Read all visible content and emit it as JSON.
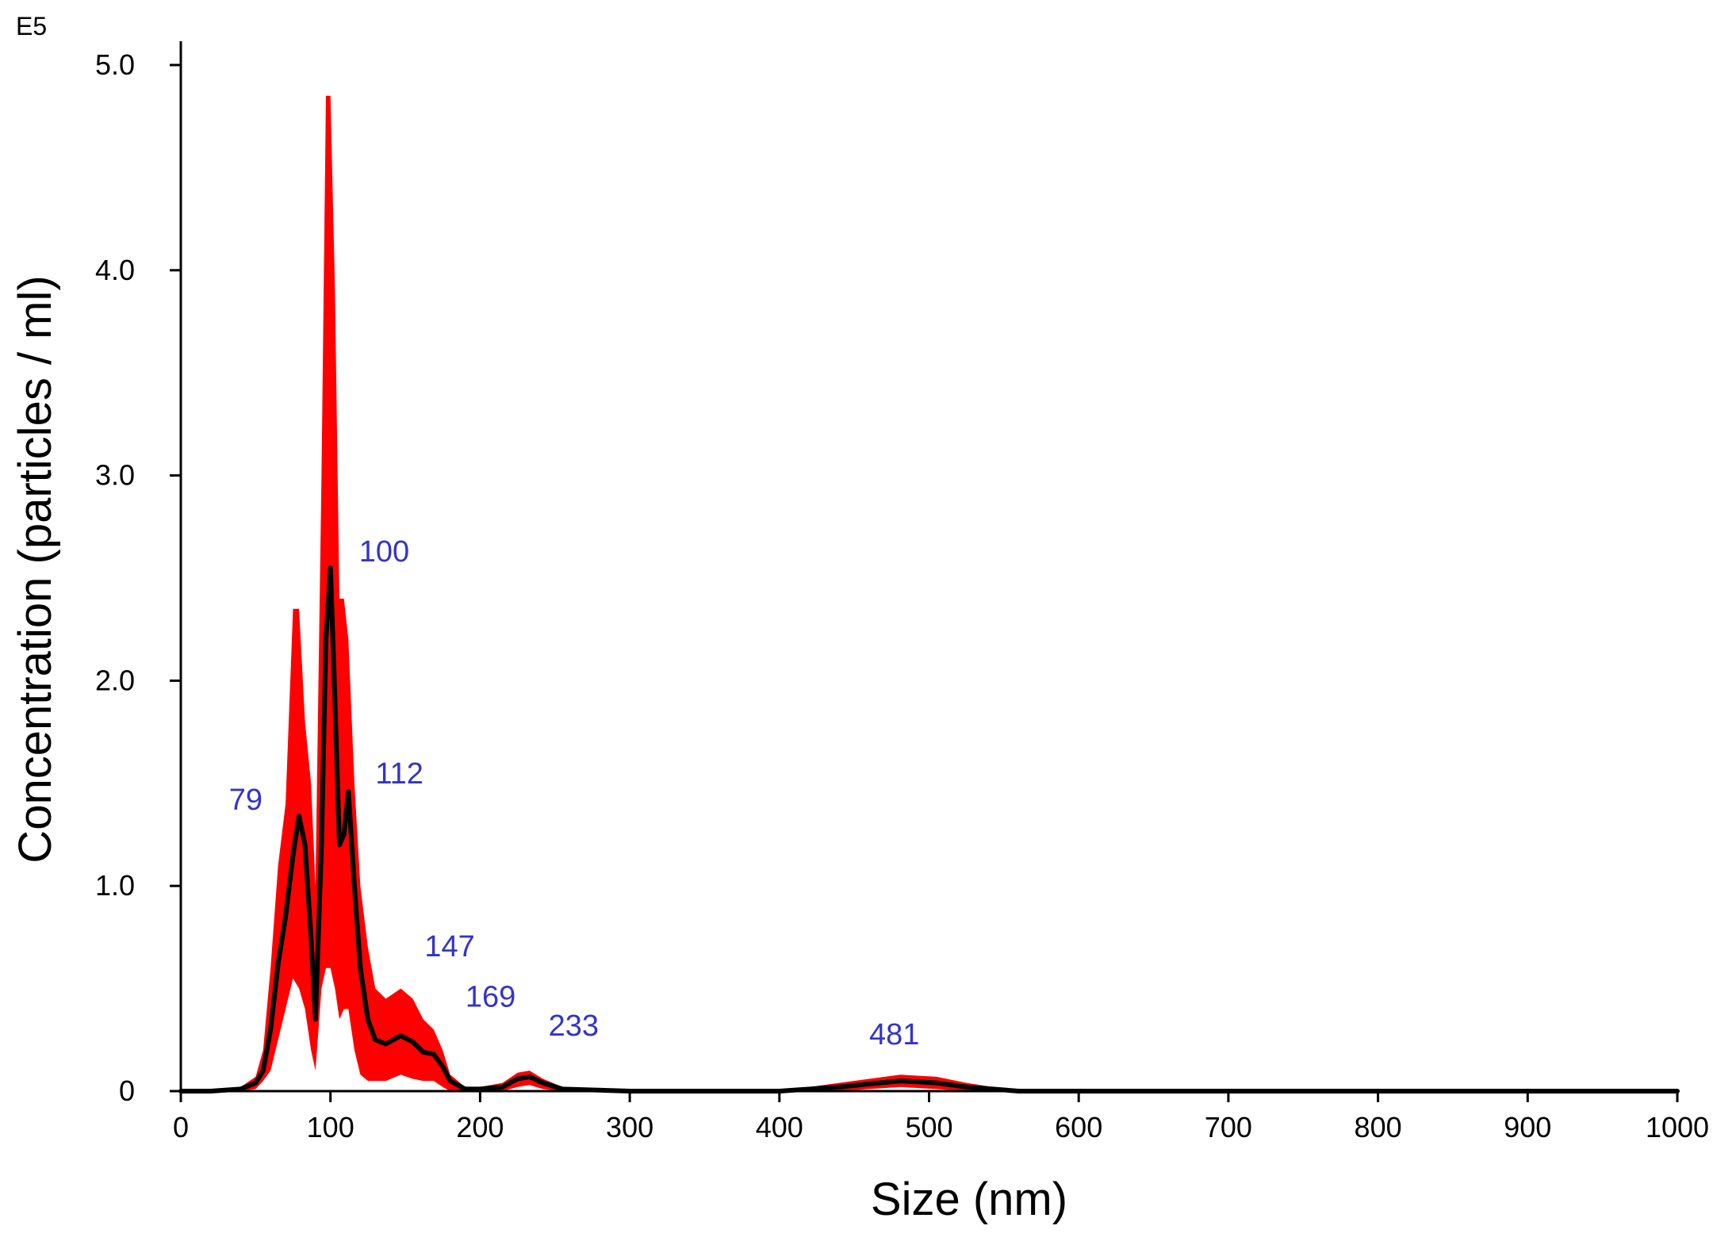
{
  "chart_data": {
    "type": "area",
    "xlabel": "Size (nm)",
    "ylabel": "Concentration (particles / ml)",
    "y_exponent_label": "E5",
    "xlim": [
      0,
      1000
    ],
    "ylim": [
      0,
      5.0
    ],
    "x_ticks": [
      {
        "value": 0,
        "label": "0"
      },
      {
        "value": 100,
        "label": "100"
      },
      {
        "value": 200,
        "label": "200"
      },
      {
        "value": 300,
        "label": "300"
      },
      {
        "value": 400,
        "label": "400"
      },
      {
        "value": 500,
        "label": "500"
      },
      {
        "value": 600,
        "label": "600"
      },
      {
        "value": 700,
        "label": "700"
      },
      {
        "value": 800,
        "label": "800"
      },
      {
        "value": 900,
        "label": "900"
      },
      {
        "value": 1000,
        "label": "1000"
      }
    ],
    "y_ticks": [
      {
        "value": 0,
        "label": "0"
      },
      {
        "value": 1.0,
        "label": "1.0"
      },
      {
        "value": 2.0,
        "label": "2.0"
      },
      {
        "value": 3.0,
        "label": "3.0"
      },
      {
        "value": 4.0,
        "label": "4.0"
      },
      {
        "value": 5.0,
        "label": "5.0"
      }
    ],
    "grid": false,
    "colors": {
      "error_band": "#ff0000",
      "mean_line": "#000000",
      "peak_labels": "#3333cc",
      "axes": "#000000"
    },
    "mean_series": {
      "x": [
        0,
        20,
        40,
        50,
        55,
        60,
        65,
        70,
        75,
        79,
        83,
        87,
        90,
        94,
        97,
        100,
        103,
        106,
        109,
        112,
        116,
        120,
        125,
        130,
        137,
        147,
        155,
        162,
        169,
        175,
        180,
        190,
        200,
        215,
        225,
        233,
        242,
        255,
        300,
        400,
        440,
        460,
        481,
        505,
        525,
        560,
        1000
      ],
      "y": [
        0,
        0,
        0.01,
        0.04,
        0.1,
        0.3,
        0.62,
        0.85,
        1.15,
        1.34,
        1.2,
        0.75,
        0.35,
        1.2,
        2.2,
        2.55,
        1.9,
        1.2,
        1.25,
        1.46,
        1.0,
        0.6,
        0.35,
        0.25,
        0.23,
        0.27,
        0.24,
        0.19,
        0.18,
        0.12,
        0.05,
        0.01,
        0.01,
        0.02,
        0.06,
        0.07,
        0.04,
        0.01,
        0.0,
        0.0,
        0.02,
        0.035,
        0.05,
        0.04,
        0.02,
        0.0,
        0.0
      ]
    },
    "error_band": {
      "x": [
        0,
        20,
        40,
        50,
        55,
        60,
        65,
        70,
        75,
        79,
        83,
        87,
        90,
        94,
        97,
        100,
        103,
        106,
        109,
        112,
        116,
        120,
        125,
        130,
        137,
        147,
        155,
        162,
        169,
        175,
        180,
        190,
        200,
        215,
        225,
        233,
        242,
        255,
        300,
        400,
        440,
        460,
        481,
        505,
        525,
        560,
        1000
      ],
      "lower": [
        0,
        0,
        0,
        0.01,
        0.05,
        0.1,
        0.25,
        0.4,
        0.55,
        0.5,
        0.4,
        0.2,
        0.1,
        0.5,
        0.6,
        0.6,
        0.5,
        0.35,
        0.4,
        0.4,
        0.2,
        0.08,
        0.05,
        0.05,
        0.05,
        0.08,
        0.06,
        0.05,
        0.05,
        0.02,
        0.0,
        0.0,
        0.0,
        0.0,
        0.02,
        0.03,
        0.01,
        0.0,
        0.0,
        0.0,
        0.0,
        0.01,
        0.02,
        0.01,
        0.0,
        0.0,
        0.0
      ],
      "upper": [
        0,
        0,
        0.02,
        0.07,
        0.2,
        0.6,
        1.1,
        1.4,
        2.35,
        2.35,
        1.8,
        1.5,
        1.0,
        3.0,
        4.85,
        4.85,
        3.9,
        2.4,
        2.4,
        2.2,
        1.5,
        1.0,
        0.7,
        0.5,
        0.45,
        0.5,
        0.45,
        0.35,
        0.3,
        0.2,
        0.08,
        0.02,
        0.02,
        0.04,
        0.09,
        0.1,
        0.06,
        0.02,
        0.0,
        0.0,
        0.04,
        0.06,
        0.08,
        0.07,
        0.04,
        0.0,
        0.0
      ]
    },
    "annotations": [
      {
        "text": "79",
        "x": 79,
        "y": 1.34
      },
      {
        "text": "100",
        "x": 100,
        "y": 2.55
      },
      {
        "text": "112",
        "x": 112,
        "y": 1.46
      },
      {
        "text": "147",
        "x": 147,
        "y": 0.27
      },
      {
        "text": "169",
        "x": 169,
        "y": 0.18
      },
      {
        "text": "233",
        "x": 233,
        "y": 0.07
      },
      {
        "text": "481",
        "x": 481,
        "y": 0.05
      }
    ]
  }
}
